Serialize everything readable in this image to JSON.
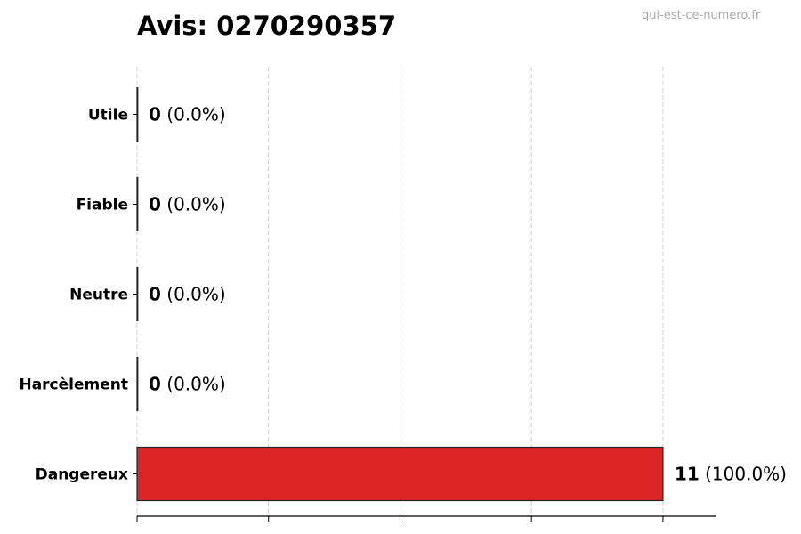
{
  "chart_data": {
    "type": "bar",
    "orientation": "horizontal",
    "title": "Avis: 0270290357",
    "watermark": "qui-est-ce-numero.fr",
    "categories": [
      "Utile",
      "Fiable",
      "Neutre",
      "Harcèlement",
      "Dangereux"
    ],
    "values": [
      0,
      0,
      0,
      0,
      11
    ],
    "value_labels": [
      "0",
      "0",
      "0",
      "0",
      "11"
    ],
    "percent_labels": [
      "(0.0%)",
      "(0.0%)",
      "(0.0%)",
      "(0.0%)",
      "(100.0%)"
    ],
    "bar_color": "#dc2626",
    "xlim": [
      0,
      12.1
    ],
    "xticks": [
      0,
      2.75,
      5.5,
      8.25,
      11
    ],
    "xtick_labels": [],
    "grid": "x, dashed",
    "xlabel": "",
    "ylabel": ""
  }
}
